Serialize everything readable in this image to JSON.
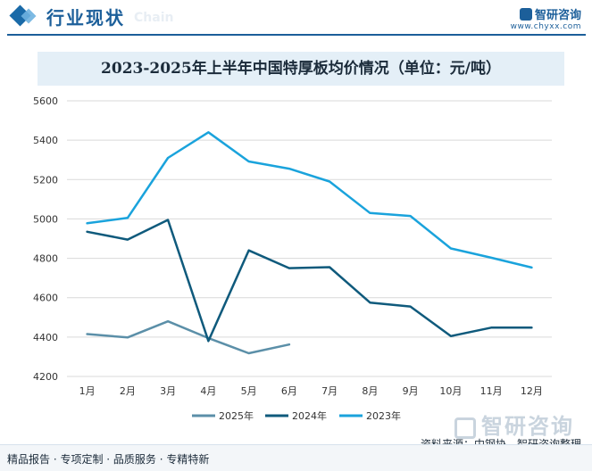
{
  "header": {
    "section_title": "行业现状",
    "section_sub": "Chain",
    "brand_name": "智研咨询",
    "brand_url": "www.chyxx.com"
  },
  "chart_data": {
    "type": "line",
    "title": "2023-2025年上半年中国特厚板均价情况（单位：元/吨）",
    "categories": [
      "1月",
      "2月",
      "3月",
      "4月",
      "5月",
      "6月",
      "7月",
      "8月",
      "9月",
      "10月",
      "11月",
      "12月"
    ],
    "yticks": [
      "5600",
      "5400",
      "5200",
      "5000",
      "4800",
      "4600",
      "4400",
      "4200"
    ],
    "ylim": [
      4200,
      5600
    ],
    "grid": "horizontal",
    "legend_position": "bottom",
    "series": [
      {
        "name": "2025年",
        "color": "#5b8fa8",
        "values": [
          4415,
          4398,
          4480,
          4395,
          4318,
          4362,
          null,
          null,
          null,
          null,
          null,
          null
        ]
      },
      {
        "name": "2024年",
        "color": "#0f5a7c",
        "values": [
          4935,
          4895,
          4995,
          4380,
          4840,
          4750,
          4755,
          4575,
          4555,
          4405,
          4448,
          4448
        ]
      },
      {
        "name": "2023年",
        "color": "#1aa3dc",
        "values": [
          4978,
          5005,
          5310,
          5440,
          5292,
          5255,
          5190,
          5030,
          5015,
          4850,
          4803,
          4753
        ]
      }
    ]
  },
  "footer": {
    "left": "精品报告 · 专项定制 · 品质服务 · 专精特新",
    "source": "资料来源：中钢协，智研咨询整理",
    "watermark": "智研咨询"
  }
}
